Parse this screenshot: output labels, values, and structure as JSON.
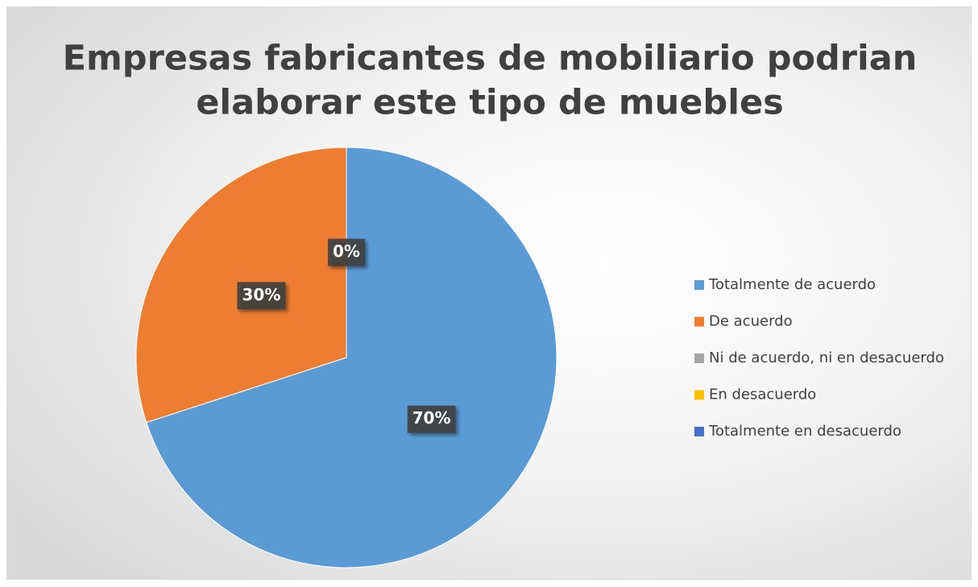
{
  "chart_data": {
    "type": "pie",
    "title": [
      "Empresas fabricantes de mobiliario podrian",
      "elaborar este tipo de muebles"
    ],
    "categories": [
      "Totalmente de acuerdo",
      "De acuerdo",
      "Ni de acuerdo, ni en desacuerdo",
      "En desacuerdo",
      "Totalmente en desacuerdo"
    ],
    "values": [
      70,
      30,
      0,
      0,
      0
    ],
    "value_labels": [
      "70%",
      "30%",
      "0%",
      null,
      null
    ],
    "colors": [
      "#5b9bd5",
      "#ed7d31",
      "#a5a5a5",
      "#ffc000",
      "#4472c4"
    ],
    "legend": "right"
  }
}
